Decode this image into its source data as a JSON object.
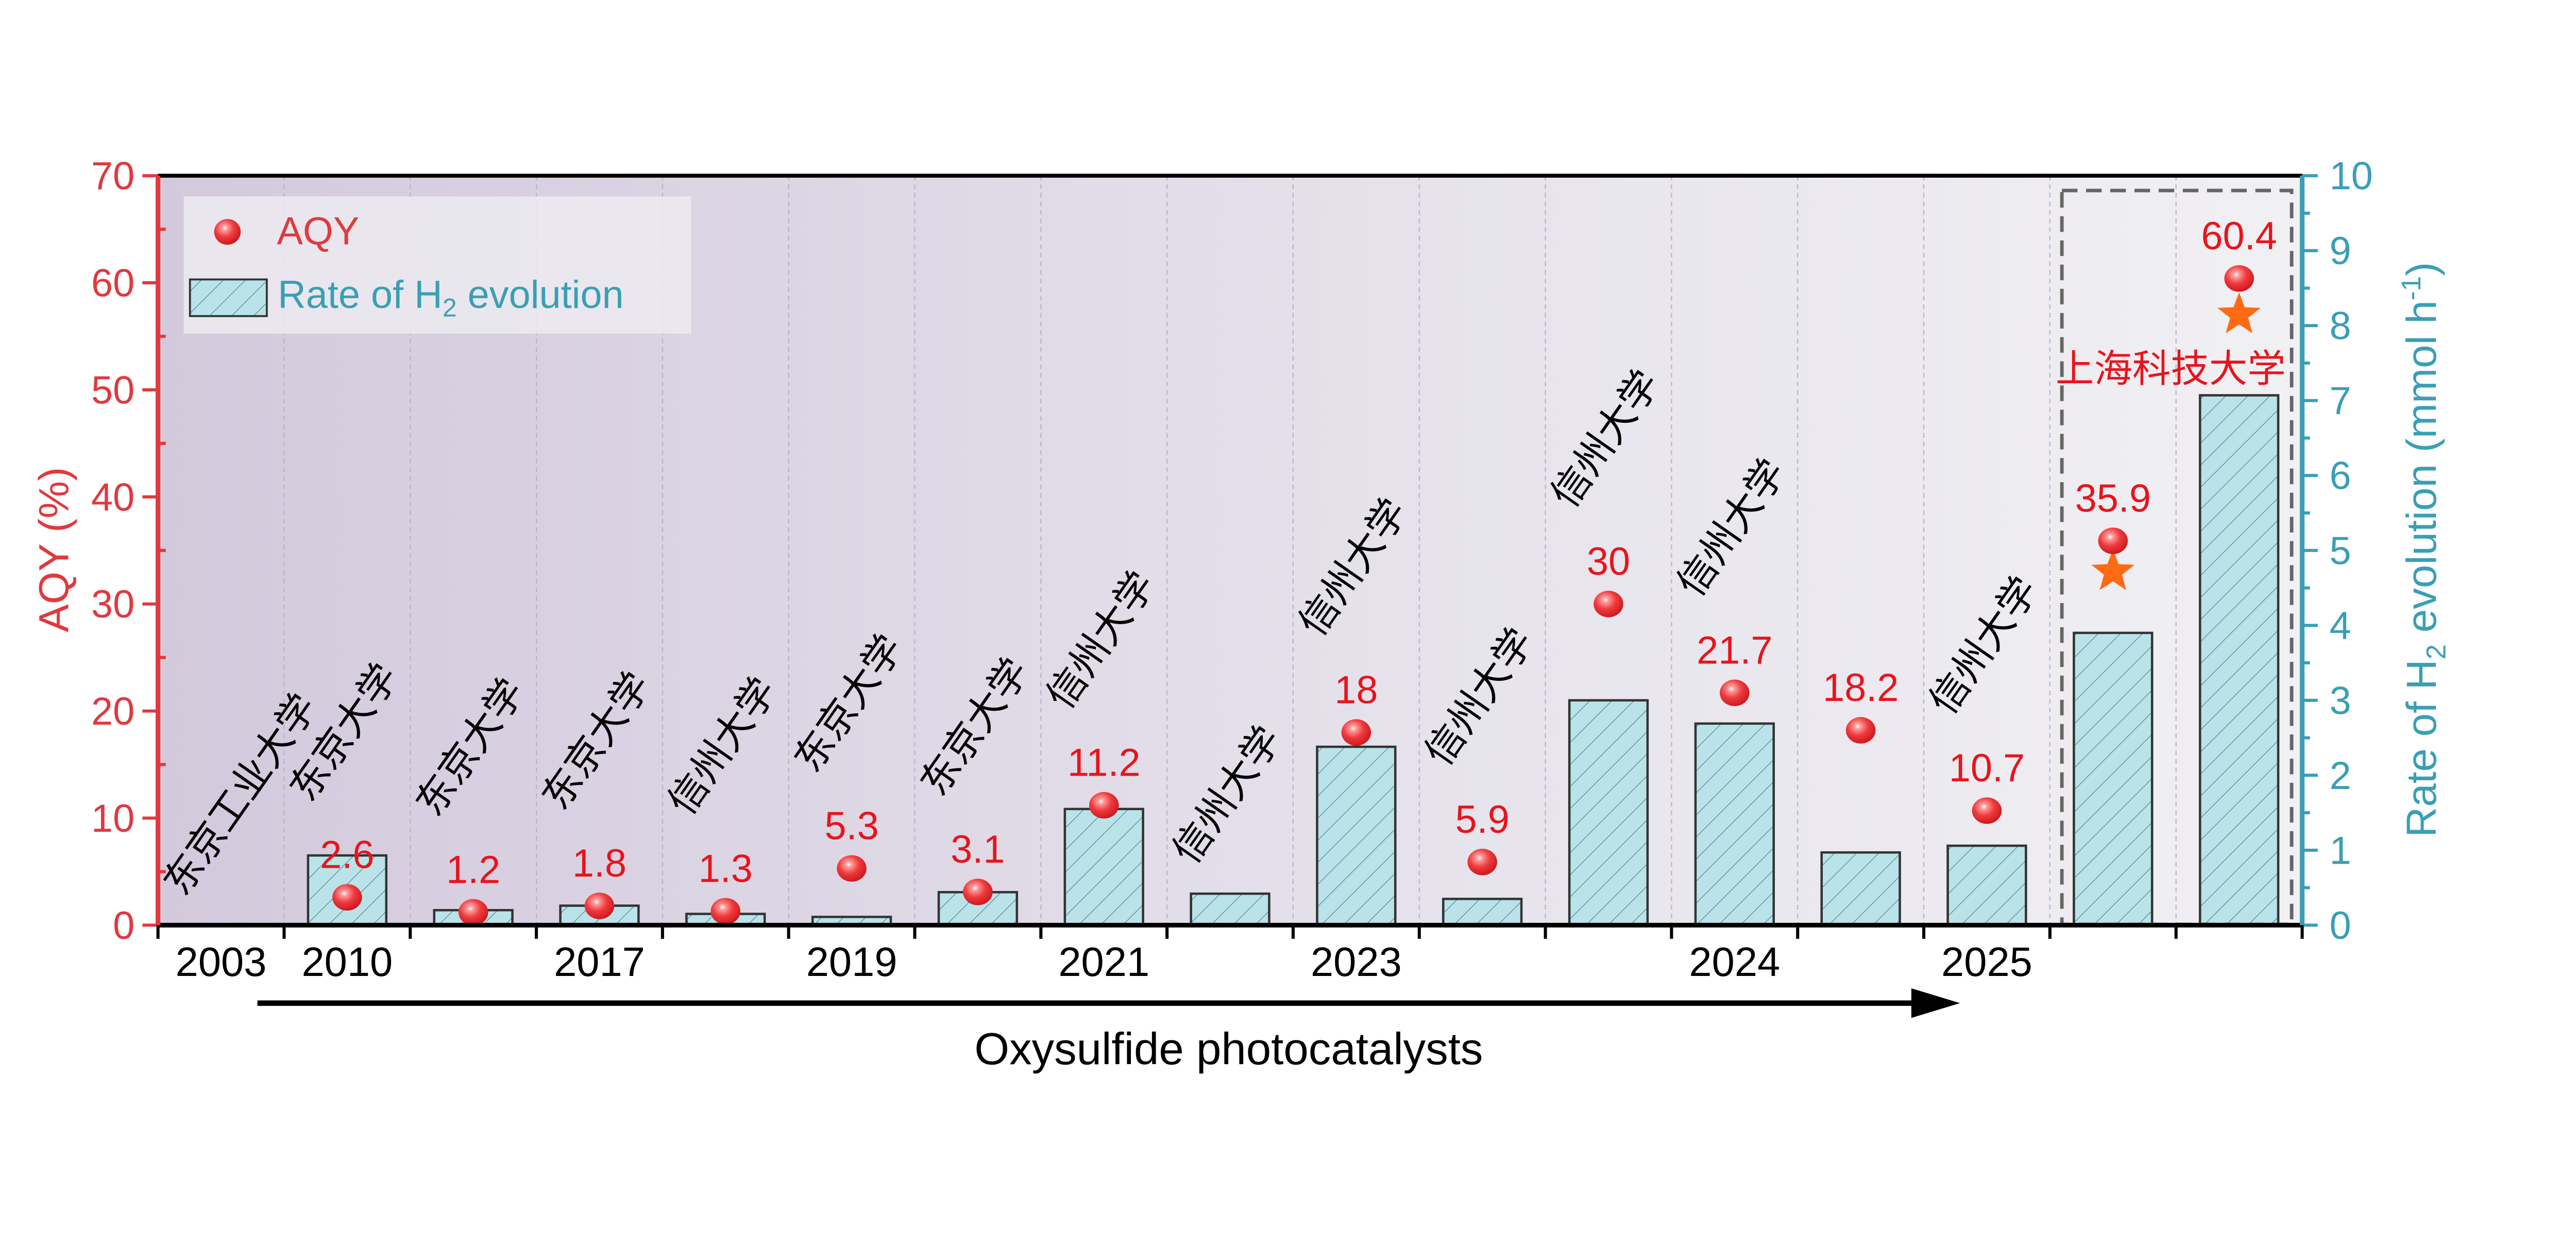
{
  "chart_data": {
    "type": "bar",
    "xlabel": "Oxysulfide photocatalysts",
    "ylabel_left": "AQY (%)",
    "ylabel_right": "Rate of H₂ evolution (mmol h⁻¹)",
    "ylim_left": [
      0,
      70
    ],
    "ylim_right": [
      0,
      10
    ],
    "yticks_left": [
      0,
      10,
      20,
      30,
      40,
      50,
      60,
      70
    ],
    "yticks_right": [
      0,
      1,
      2,
      3,
      4,
      5,
      6,
      7,
      8,
      9,
      10
    ],
    "legend": {
      "placement": "top-left",
      "entries": [
        "AQY",
        "Rate of H2 evolution"
      ]
    },
    "tick_labels": [
      "2003",
      "2010",
      "",
      "2017",
      "",
      "2019",
      "",
      "2021",
      "",
      "2023",
      "",
      "",
      "2024",
      "",
      "2025",
      "",
      ""
    ],
    "series": [
      {
        "name": "Rate of H2 evolution",
        "axis": "right",
        "kind": "bar",
        "values": [
          0,
          0.93,
          0.2,
          0.26,
          0.15,
          0.11,
          0.44,
          1.55,
          0.42,
          2.38,
          0.35,
          3.0,
          2.69,
          0.97,
          1.06,
          3.9,
          7.07
        ]
      },
      {
        "name": "AQY",
        "axis": "left",
        "kind": "scatter",
        "values": [
          null,
          2.6,
          1.2,
          1.8,
          1.3,
          5.3,
          3.1,
          11.2,
          null,
          18,
          5.9,
          30,
          21.7,
          18.2,
          10.7,
          35.9,
          60.4
        ],
        "labels": [
          "",
          "2.6",
          "1.2",
          "1.8",
          "1.3",
          "5.3",
          "3.1",
          "11.2",
          "",
          "18",
          "5.9",
          "30",
          "21.7",
          "18.2",
          "10.7",
          "35.9",
          "60.4"
        ]
      }
    ],
    "institutions": [
      "东京工业大学",
      "东京大学",
      "东京大学",
      "东京大学",
      "信州大学",
      "东京大学",
      "东京大学",
      "信州大学",
      "信州大学",
      "信州大学",
      "信州大学",
      "信州大学",
      "信州大学",
      "",
      "信州大学",
      "",
      ""
    ],
    "highlight": {
      "label": "上海科技大学",
      "categories": [
        15,
        16
      ],
      "star_markers": true
    },
    "colors": {
      "left_axis": "#e0393e",
      "right_axis": "#3a9fb5",
      "value_label": "#e8141c",
      "bar_fill": "#b9e3e8",
      "star": "#ff6a13",
      "ball": "#e8262b"
    }
  }
}
